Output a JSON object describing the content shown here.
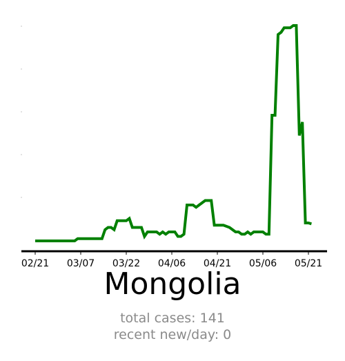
{
  "chart_data": {
    "type": "line",
    "title": "Mongolia",
    "xlabel": "",
    "ylabel": "",
    "x_tick_labels": [
      "02/21",
      "03/07",
      "03/22",
      "04/06",
      "04/21",
      "05/06",
      "05/21"
    ],
    "x_tick_days": [
      0,
      15,
      30,
      45,
      60,
      75,
      90
    ],
    "xlim": [
      -4,
      95
    ],
    "ylim": [
      -1,
      49
    ],
    "grid": false,
    "line_color": "#008000",
    "series": [
      {
        "x": [
          0,
          2,
          4,
          6,
          8,
          10,
          12,
          13,
          14,
          15,
          16,
          17,
          19,
          21,
          22,
          23,
          24,
          25,
          26,
          27,
          28,
          29,
          30,
          31,
          32,
          33,
          35,
          36,
          37,
          38,
          39,
          40,
          41,
          42,
          43,
          44,
          45,
          46,
          47,
          48,
          49,
          50,
          51,
          52,
          53,
          54,
          56,
          58,
          59,
          60,
          61,
          62,
          64,
          66,
          67,
          68,
          69,
          70,
          71,
          72,
          74,
          75,
          76,
          77,
          78,
          79,
          80,
          81,
          82,
          84,
          85,
          86,
          87,
          88,
          89,
          90,
          91
        ],
        "y": [
          0,
          0,
          0,
          0,
          0,
          0,
          0,
          0,
          0.5,
          0.5,
          0.5,
          0.5,
          0.5,
          0.5,
          0.5,
          2.5,
          3,
          3,
          2.5,
          4.5,
          4.5,
          4.5,
          4.5,
          5,
          3,
          3,
          3,
          1,
          2,
          2,
          2,
          2,
          1.5,
          2,
          1.5,
          2,
          2,
          2,
          1,
          1,
          1.5,
          8,
          8,
          8,
          7.5,
          8,
          9,
          9,
          3.5,
          3.5,
          3.5,
          3.5,
          3,
          2,
          2,
          1.5,
          1.5,
          2,
          1.5,
          2,
          2,
          2,
          1.5,
          1.5,
          28,
          28,
          46,
          46.5,
          47.5,
          47.5,
          48,
          48,
          23.5,
          26.5,
          4,
          4,
          3.8
        ]
      }
    ]
  },
  "country": "Mongolia",
  "stats": {
    "total_cases": "total cases: 141",
    "recent_new": "recent new/day: 0"
  }
}
